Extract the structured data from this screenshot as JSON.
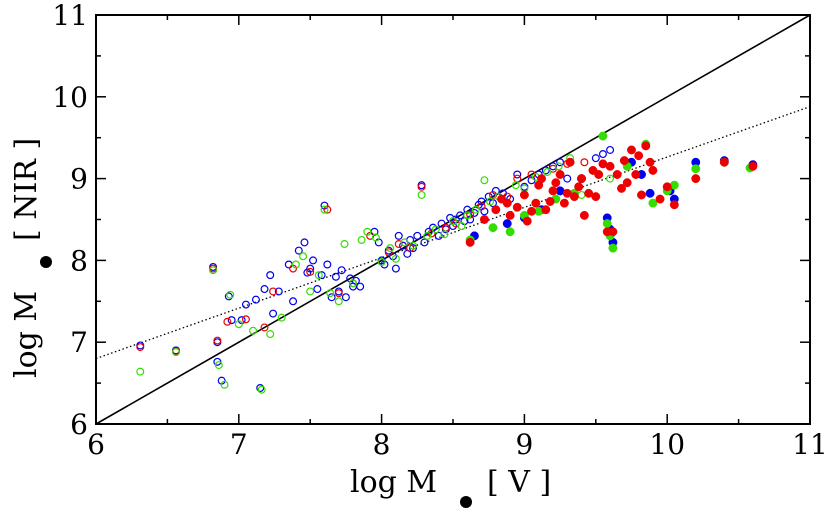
{
  "chart_data": {
    "type": "scatter",
    "title": "",
    "xlabel": "log M",
    "xlabel_suffix": "[ V ]",
    "ylabel": "log M",
    "ylabel_suffix": "[ NIR ]",
    "xlim": [
      6,
      11
    ],
    "ylim": [
      6,
      11
    ],
    "xticks": [
      "6",
      "7",
      "8",
      "9",
      "10",
      "11"
    ],
    "yticks": [
      "6",
      "7",
      "8",
      "9",
      "10",
      "11"
    ],
    "grid": false,
    "lines": [
      {
        "name": "one-to-one",
        "style": "solid",
        "points": [
          [
            6,
            6
          ],
          [
            11,
            11
          ]
        ]
      },
      {
        "name": "fit",
        "style": "dotted",
        "points": [
          [
            6,
            6.8
          ],
          [
            11,
            9.88
          ]
        ]
      }
    ],
    "colors": {
      "blue": "#0000ee",
      "red": "#ee0000",
      "green": "#00dd00",
      "axis": "#000000"
    },
    "series": [
      {
        "name": "open-blue",
        "marker": "open",
        "color": "#0000ee",
        "x": [
          6.31,
          6.56,
          6.82,
          6.85,
          6.85,
          6.88,
          6.93,
          6.95,
          7.02,
          7.05,
          7.12,
          7.15,
          7.18,
          7.22,
          7.24,
          7.28,
          7.35,
          7.38,
          7.42,
          7.46,
          7.48,
          7.5,
          7.52,
          7.55,
          7.58,
          7.6,
          7.62,
          7.65,
          7.68,
          7.7,
          7.72,
          7.75,
          7.78,
          7.8,
          7.82,
          7.85,
          7.95,
          7.98,
          8.0,
          8.02,
          8.05,
          8.08,
          8.1,
          8.12,
          8.15,
          8.18,
          8.2,
          8.22,
          8.25,
          8.28,
          8.3,
          8.33,
          8.36,
          8.4,
          8.42,
          8.45,
          8.48,
          8.5,
          8.52,
          8.55,
          8.58,
          8.6,
          8.62,
          8.65,
          8.68,
          8.7,
          8.72,
          8.75,
          8.78,
          8.8,
          8.85,
          8.9,
          8.95,
          9.0,
          9.05,
          9.1,
          9.15,
          9.2,
          9.25,
          9.3,
          9.5,
          9.55,
          9.6
        ],
        "y": [
          6.96,
          6.9,
          7.92,
          7.0,
          6.76,
          6.53,
          7.56,
          7.27,
          7.27,
          7.46,
          7.52,
          6.44,
          7.65,
          7.82,
          7.35,
          7.62,
          7.95,
          7.5,
          8.12,
          8.22,
          7.85,
          7.9,
          8.0,
          7.65,
          7.82,
          8.67,
          7.95,
          7.55,
          7.8,
          7.62,
          7.88,
          7.55,
          7.78,
          7.68,
          7.75,
          7.68,
          8.35,
          8.22,
          8.0,
          7.95,
          8.12,
          8.05,
          7.9,
          8.3,
          8.18,
          8.08,
          8.25,
          8.15,
          8.3,
          8.92,
          8.22,
          8.35,
          8.4,
          8.3,
          8.45,
          8.38,
          8.52,
          8.42,
          8.5,
          8.55,
          8.48,
          8.62,
          8.5,
          8.58,
          8.68,
          8.72,
          8.6,
          8.78,
          8.7,
          8.85,
          8.82,
          8.75,
          9.05,
          8.9,
          8.98,
          9.05,
          9.1,
          9.15,
          9.2,
          9.0,
          9.25,
          9.3,
          9.35
        ]
      },
      {
        "name": "open-red",
        "marker": "open",
        "color": "#ee0000",
        "x": [
          6.31,
          6.56,
          6.82,
          6.85,
          6.92,
          7.05,
          7.18,
          7.24,
          7.38,
          7.5,
          7.62,
          7.7,
          7.8,
          7.92,
          8.05,
          8.12,
          8.2,
          8.28,
          8.35,
          8.45,
          8.52,
          8.62,
          8.7,
          8.78,
          8.88,
          8.95,
          9.05,
          9.2,
          9.3,
          9.42
        ],
        "y": [
          6.94,
          6.89,
          7.9,
          7.02,
          7.25,
          7.28,
          7.18,
          7.62,
          7.9,
          7.86,
          8.62,
          7.6,
          7.72,
          8.3,
          8.1,
          8.2,
          8.15,
          8.9,
          8.33,
          8.4,
          8.45,
          8.56,
          8.66,
          8.8,
          8.78,
          9.0,
          9.05,
          9.12,
          9.18,
          9.2
        ]
      },
      {
        "name": "open-green",
        "marker": "open",
        "color": "#33dd00",
        "x": [
          6.31,
          6.56,
          6.82,
          6.86,
          6.9,
          6.94,
          7.0,
          7.1,
          7.16,
          7.22,
          7.3,
          7.4,
          7.45,
          7.5,
          7.56,
          7.6,
          7.64,
          7.7,
          7.74,
          7.8,
          7.86,
          7.9,
          7.96,
          8.0,
          8.06,
          8.1,
          8.16,
          8.22,
          8.28,
          8.32,
          8.38,
          8.44,
          8.5,
          8.56,
          8.6,
          8.66,
          8.72,
          8.76,
          8.82,
          8.88,
          8.94,
          9.0,
          9.08,
          9.16,
          9.24,
          9.32,
          9.4,
          9.6
        ],
        "y": [
          6.64,
          6.88,
          7.88,
          6.72,
          6.48,
          7.58,
          7.22,
          7.14,
          6.42,
          7.1,
          7.3,
          7.95,
          8.05,
          7.62,
          7.82,
          8.62,
          7.6,
          7.5,
          8.2,
          7.72,
          8.25,
          8.35,
          8.28,
          7.98,
          8.15,
          8.02,
          8.22,
          8.18,
          8.8,
          8.3,
          8.38,
          8.32,
          8.48,
          8.42,
          8.55,
          8.62,
          8.98,
          8.72,
          8.78,
          8.7,
          8.92,
          8.88,
          9.02,
          9.08,
          9.15,
          9.25,
          8.8,
          9.0
        ]
      },
      {
        "name": "filled-blue",
        "marker": "filled",
        "color": "#0000ee",
        "x": [
          8.65,
          8.88,
          9.0,
          9.12,
          9.25,
          9.4,
          9.58,
          9.6,
          9.62,
          9.75,
          9.82,
          9.88,
          10.02,
          10.05,
          10.2,
          10.4,
          10.6
        ],
        "y": [
          8.3,
          8.45,
          8.52,
          8.62,
          8.85,
          9.0,
          8.52,
          8.38,
          8.22,
          9.2,
          9.05,
          8.82,
          8.85,
          8.75,
          9.2,
          9.22,
          9.17
        ]
      },
      {
        "name": "filled-green",
        "marker": "filled",
        "color": "#33dd00",
        "x": [
          8.62,
          8.78,
          8.9,
          9.0,
          9.1,
          9.22,
          9.35,
          9.55,
          9.58,
          9.6,
          9.62,
          9.72,
          9.85,
          9.9,
          10.0,
          10.05,
          10.2,
          10.4,
          10.58
        ],
        "y": [
          8.25,
          8.4,
          8.35,
          8.55,
          8.6,
          8.75,
          8.82,
          9.52,
          8.45,
          8.3,
          8.15,
          9.15,
          9.42,
          8.7,
          8.85,
          8.92,
          9.12,
          9.2,
          9.13
        ]
      },
      {
        "name": "filled-red",
        "marker": "filled",
        "color": "#ee0000",
        "x": [
          8.62,
          8.72,
          8.8,
          8.84,
          8.88,
          8.9,
          8.95,
          9.0,
          9.02,
          9.05,
          9.08,
          9.1,
          9.12,
          9.15,
          9.18,
          9.2,
          9.22,
          9.25,
          9.28,
          9.3,
          9.32,
          9.35,
          9.38,
          9.4,
          9.42,
          9.45,
          9.48,
          9.5,
          9.52,
          9.55,
          9.58,
          9.6,
          9.62,
          9.65,
          9.68,
          9.7,
          9.72,
          9.75,
          9.78,
          9.8,
          9.82,
          9.85,
          9.88,
          9.9,
          9.95,
          10.0,
          10.05,
          10.2,
          10.4,
          10.6
        ],
        "y": [
          8.22,
          8.5,
          8.62,
          8.75,
          8.7,
          8.55,
          8.65,
          8.8,
          8.48,
          8.6,
          8.7,
          8.92,
          9.0,
          8.62,
          8.72,
          8.85,
          8.95,
          9.05,
          8.7,
          8.82,
          9.2,
          8.78,
          8.9,
          9.0,
          8.55,
          8.82,
          9.1,
          8.78,
          9.05,
          9.18,
          8.35,
          9.15,
          8.35,
          9.05,
          8.88,
          9.22,
          8.95,
          9.35,
          9.05,
          9.28,
          8.8,
          9.4,
          9.2,
          9.1,
          8.75,
          8.9,
          8.68,
          9.0,
          9.2,
          9.15
        ]
      }
    ]
  }
}
